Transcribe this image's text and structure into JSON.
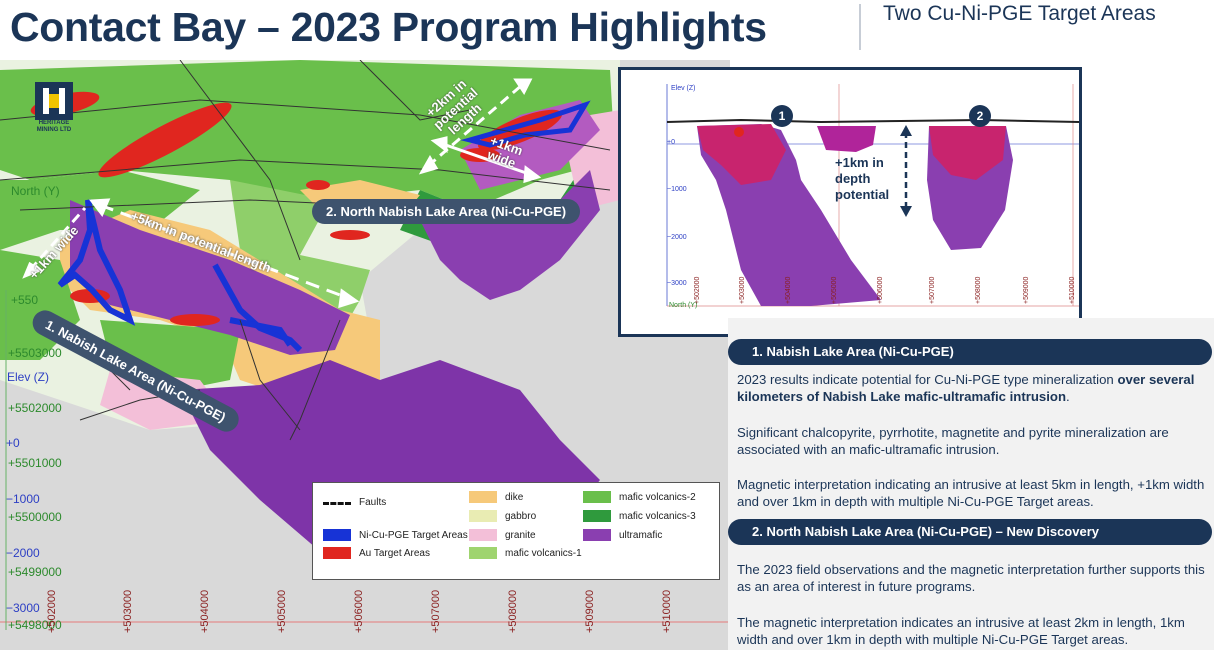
{
  "header": {
    "title": "Contact Bay – 2023 Program Highlights",
    "subtitle": "Two Cu-Ni-PGE Target Areas"
  },
  "logo": {
    "name": "HERITAGE",
    "tagline": "MINING LTD"
  },
  "map": {
    "northings": [
      "North (Y)",
      "+5503000",
      "+5502000",
      "+5501000",
      "+5500000",
      "+5499000",
      "+5498000"
    ],
    "northing_partial": "+550",
    "elev_label": "Elev (Z)",
    "elevations": [
      "+0",
      "−1000",
      "−2000",
      "−3000"
    ],
    "eastings": [
      "+502000",
      "+503000",
      "+504000",
      "+505000",
      "+506000",
      "+507000",
      "+508000",
      "+509000",
      "+510000"
    ],
    "annotations": {
      "length_5km": "+5km in potential length",
      "width_1km_left": "+1km wide",
      "length_2km": "+2km in potential length",
      "width_1km_right": "+1km wide"
    },
    "areas": {
      "nabish": "1. Nabish Lake Area (Ni-Cu-PGE)",
      "north_nabish": "2. North Nabish Lake Area (Ni-Cu-PGE)"
    },
    "colors": {
      "target": "#1733d6",
      "au": "#e0261f",
      "ultramafic": "#8a3fb0",
      "dike": "#f6c97a",
      "volc2": "#6abf4b",
      "volc3": "#2f9a3d"
    }
  },
  "legend": {
    "faults": "Faults",
    "ni_target": "Ni-Cu-PGE Target Areas",
    "au_target": "Au Target Areas",
    "dike": "dike",
    "gabbro": "gabbro",
    "granite": "granite",
    "mafic1": "mafic volcanics-1",
    "mafic2": "mafic volcanics-2",
    "mafic3": "mafic volcanics-3",
    "ultramafic": "ultramafic"
  },
  "inset": {
    "elev_label": "Elev (Z)",
    "elevations": [
      "+0",
      "−1000",
      "−2000",
      "−3000"
    ],
    "north_label": "North (Y)",
    "eastings": [
      "+502000",
      "+503000",
      "+504000",
      "+505000",
      "+506000",
      "+507000",
      "+508000",
      "+509000",
      "+510000"
    ],
    "marker1": "1",
    "marker2": "2",
    "depth_note": [
      "+1km in",
      "depth",
      "potential"
    ]
  },
  "section1": {
    "heading": "1. Nabish Lake Area (Ni-Cu-PGE)",
    "p1_a": "2023 results indicate potential for Cu-Ni-PGE type mineralization ",
    "p1_b": "over several kilometers of Nabish Lake mafic-ultramafic intrusion",
    "p1_c": ".",
    "p2": "Significant chalcopyrite, pyrrhotite, magnetite and pyrite mineralization are associated with an mafic-ultramafic intrusion.",
    "p3": "Magnetic interpretation indicating an intrusive at least 5km in length, +1km width and over 1km in depth with multiple Ni-Cu-PGE Target areas."
  },
  "section2": {
    "heading": "2. North Nabish Lake Area (Ni-Cu-PGE) – New Discovery",
    "p1": "The 2023 field observations and the magnetic interpretation further supports this as an area of interest in future programs.",
    "p2": "The magnetic interpretation indicates an intrusive at least 2km in length, 1km width and over 1km in depth with multiple Ni-Cu-PGE Target areas."
  }
}
